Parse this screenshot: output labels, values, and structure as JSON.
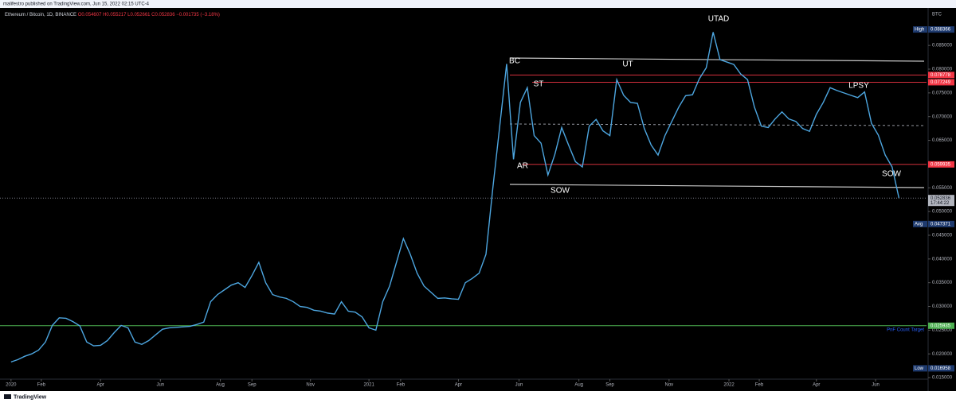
{
  "header": {
    "published": "malifestro published on TradingView.com, Jun 15, 2022 02:15 UTC-4",
    "brand": "TradingView"
  },
  "chart_data": {
    "type": "line",
    "title": "Ethereum / Bitcoin, 1D, BINANCE",
    "ohlc_text": [
      "O0.054607",
      "H0.055217",
      "L0.052661",
      "C0.052836",
      "−0.001735 (−3.18%)"
    ],
    "currency": "BTC",
    "series": [
      {
        "name": "ETHBTC",
        "color": "#4da6e0",
        "values": [
          0.0183,
          0.0188,
          0.0195,
          0.02,
          0.0208,
          0.0225,
          0.026,
          0.0276,
          0.0275,
          0.0268,
          0.0259,
          0.0225,
          0.0217,
          0.0218,
          0.0228,
          0.0245,
          0.026,
          0.0255,
          0.0225,
          0.022,
          0.0228,
          0.024,
          0.0252,
          0.0255,
          0.0256,
          0.0257,
          0.0258,
          0.0262,
          0.0267,
          0.031,
          0.0325,
          0.0335,
          0.0345,
          0.035,
          0.034,
          0.0365,
          0.0393,
          0.035,
          0.0325,
          0.032,
          0.0317,
          0.031,
          0.03,
          0.0298,
          0.0292,
          0.029,
          0.0286,
          0.0284,
          0.031,
          0.029,
          0.0288,
          0.0278,
          0.0255,
          0.025,
          0.031,
          0.0343,
          0.0393,
          0.0443,
          0.041,
          0.037,
          0.0343,
          0.033,
          0.0317,
          0.0318,
          0.0316,
          0.0315,
          0.035,
          0.0359,
          0.037,
          0.041,
          0.055,
          0.068,
          0.0811,
          0.061,
          0.073,
          0.0761,
          0.066,
          0.0644,
          0.0577,
          0.062,
          0.0677,
          0.064,
          0.0605,
          0.0594,
          0.068,
          0.0694,
          0.067,
          0.066,
          0.0778,
          0.0745,
          0.073,
          0.0728,
          0.0675,
          0.064,
          0.0619,
          0.066,
          0.069,
          0.072,
          0.0744,
          0.0746,
          0.078,
          0.0803,
          0.0878,
          0.082,
          0.0815,
          0.081,
          0.079,
          0.0778,
          0.072,
          0.068,
          0.0677,
          0.0695,
          0.071,
          0.0695,
          0.069,
          0.0675,
          0.0669,
          0.0705,
          0.073,
          0.0761,
          0.0755,
          0.075,
          0.0745,
          0.074,
          0.0752,
          0.0686,
          0.0661,
          0.0619,
          0.0594,
          0.0528
        ]
      }
    ],
    "xlim": [
      -1.6,
      133
    ],
    "xticks": [
      {
        "value": 0,
        "label": "2020"
      },
      {
        "value": 4.4,
        "label": "Feb"
      },
      {
        "value": 13,
        "label": "Apr"
      },
      {
        "value": 21.7,
        "label": "Jun"
      },
      {
        "value": 30.4,
        "label": "Aug"
      },
      {
        "value": 35,
        "label": "Sep"
      },
      {
        "value": 43.5,
        "label": "Nov"
      },
      {
        "value": 52,
        "label": "2021"
      },
      {
        "value": 56.6,
        "label": "Feb"
      },
      {
        "value": 65,
        "label": "Apr"
      },
      {
        "value": 73.8,
        "label": "Jun"
      },
      {
        "value": 82.5,
        "label": "Aug"
      },
      {
        "value": 87,
        "label": "Sep"
      },
      {
        "value": 95.6,
        "label": "Nov"
      },
      {
        "value": 104.3,
        "label": "2022"
      },
      {
        "value": 108.7,
        "label": "Feb"
      },
      {
        "value": 117,
        "label": "Apr"
      },
      {
        "value": 125.6,
        "label": "Jun"
      }
    ],
    "ylim": [
      0.0125,
      0.0929
    ],
    "yticks": [
      {
        "value": 0.015,
        "label": "0.015000"
      },
      {
        "value": 0.02,
        "label": "0.020000"
      },
      {
        "value": 0.025,
        "label": "0.025000"
      },
      {
        "value": 0.03,
        "label": "0.030000"
      },
      {
        "value": 0.035,
        "label": "0.035000"
      },
      {
        "value": 0.04,
        "label": "0.040000"
      },
      {
        "value": 0.045,
        "label": "0.045000"
      },
      {
        "value": 0.05,
        "label": "0.050000"
      },
      {
        "value": 0.055,
        "label": "0.055000"
      },
      {
        "value": 0.06,
        "label": "0.060000"
      },
      {
        "value": 0.065,
        "label": "0.065000"
      },
      {
        "value": 0.07,
        "label": "0.070000"
      },
      {
        "value": 0.075,
        "label": "0.075000"
      },
      {
        "value": 0.08,
        "label": "0.080000"
      },
      {
        "value": 0.085,
        "label": "0.085000"
      }
    ],
    "grid": false,
    "levels": [
      {
        "value": 0.078778,
        "color": "#f23645"
      },
      {
        "value": 0.077249,
        "color": "#f23645"
      },
      {
        "value": 0.059935,
        "color": "#f23645"
      }
    ],
    "target": {
      "value": 0.025935,
      "color": "#4caf50",
      "note": "PnF Count Target"
    },
    "markers": [
      {
        "name": "High",
        "value": 0.088366
      },
      {
        "name": "Avg",
        "value": 0.047371
      },
      {
        "name": "Low",
        "value": 0.016958
      }
    ],
    "last": {
      "value": 0.052836,
      "countdown": "17:44:22"
    },
    "annotations": [
      "BC",
      "ST",
      "AR",
      "SOW",
      "UT",
      "UTAD",
      "LPSY",
      "SOW"
    ]
  }
}
